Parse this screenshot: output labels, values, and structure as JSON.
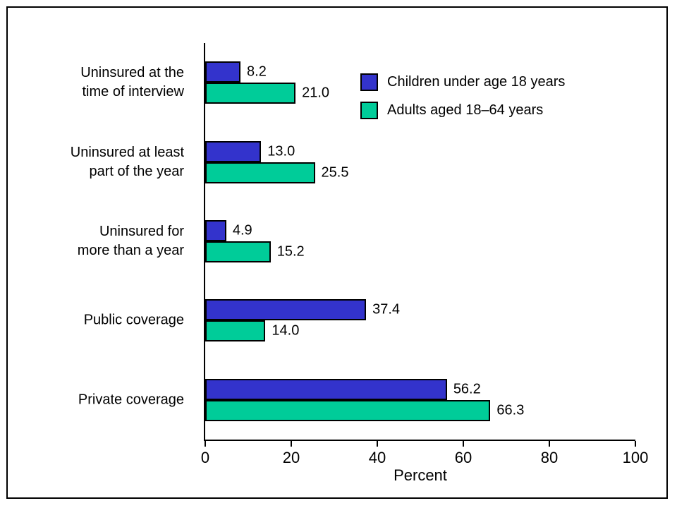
{
  "figure": {
    "background": "#ffffff",
    "border_color": "#000000"
  },
  "chart_data": {
    "type": "bar",
    "orientation": "horizontal",
    "title": "",
    "xlabel": "Percent",
    "xlim": [
      0,
      100
    ],
    "xticks": [
      0,
      20,
      40,
      60,
      80,
      100
    ],
    "grid": false,
    "legend_position": "top-right-inside",
    "categories": [
      "Uninsured at the\ntime of interview",
      "Uninsured at least\npart of the year",
      "Uninsured for\nmore than a year",
      "Public coverage",
      "Private coverage"
    ],
    "series": [
      {
        "name": "Children under age 18 years",
        "color": "#3333CC",
        "values": [
          8.2,
          13.0,
          4.9,
          37.4,
          56.2
        ]
      },
      {
        "name": "Adults aged 18–64 years",
        "color": "#00CC99",
        "values": [
          21.0,
          25.5,
          15.2,
          14.0,
          66.3
        ]
      }
    ]
  }
}
